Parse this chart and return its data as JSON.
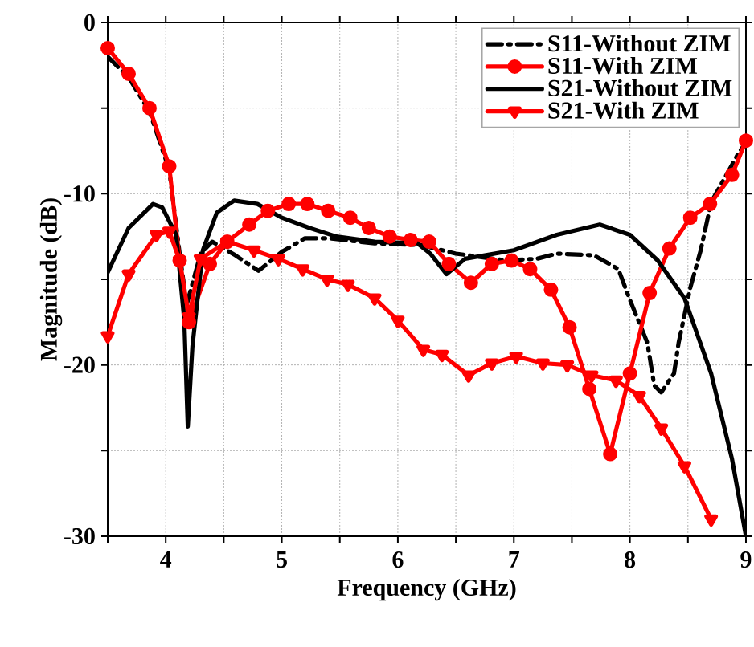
{
  "chart_data": {
    "type": "line",
    "xlabel": "Frequency (GHz)",
    "ylabel": "Magnitude (dB)",
    "xlim": [
      3.5,
      9
    ],
    "ylim": [
      -30,
      0
    ],
    "xticks": [
      {
        "value": 3.5,
        "label": null
      },
      4,
      {
        "value": 4.5,
        "label": null
      },
      5,
      {
        "value": 5.5,
        "label": null
      },
      6,
      {
        "value": 6.5,
        "label": null
      },
      7,
      {
        "value": 7.5,
        "label": null
      },
      8,
      {
        "value": 8.5,
        "label": null
      },
      9
    ],
    "yticks": [
      -30,
      {
        "value": -25,
        "label": null
      },
      -20,
      {
        "value": -15,
        "label": null
      },
      -10,
      {
        "value": -5,
        "label": null
      },
      0
    ],
    "grid": true,
    "legend": "top right",
    "series": [
      {
        "name": "S11-Without ZIM",
        "color": "#000000",
        "line_style": "dashdot",
        "marker": "none",
        "x": [
          3.5,
          3.68,
          3.86,
          4.03,
          4.12,
          4.18,
          4.3,
          4.4,
          4.6,
          4.8,
          5.0,
          5.2,
          5.4,
          5.8,
          6.2,
          6.5,
          6.93,
          7.2,
          7.37,
          7.69,
          7.9,
          8.0,
          8.15,
          8.21,
          8.27,
          8.38,
          8.42,
          8.52,
          8.61,
          8.7,
          8.93,
          9.0
        ],
        "values": [
          -2.0,
          -3.2,
          -5.2,
          -8.6,
          -13.5,
          -16.5,
          -13.5,
          -12.8,
          -13.6,
          -14.5,
          -13.4,
          -12.6,
          -12.6,
          -12.9,
          -13.0,
          -13.5,
          -13.9,
          -13.8,
          -13.5,
          -13.6,
          -14.4,
          -16.2,
          -18.7,
          -21.2,
          -21.6,
          -20.5,
          -18.7,
          -15.5,
          -13.3,
          -10.5,
          -7.7,
          -7.0
        ]
      },
      {
        "name": "S11-With ZIM",
        "color": "#ff0000",
        "line_style": "solid",
        "marker": "circle",
        "x": [
          3.5,
          3.68,
          3.86,
          4.03,
          4.12,
          4.2,
          4.38,
          4.53,
          4.72,
          4.88,
          5.06,
          5.22,
          5.4,
          5.59,
          5.75,
          5.93,
          6.11,
          6.27,
          6.44,
          6.63,
          6.81,
          6.98,
          7.14,
          7.32,
          7.48,
          7.65,
          7.83,
          8.0,
          8.17,
          8.34,
          8.52,
          8.69,
          8.88,
          9.0
        ],
        "values": [
          -1.5,
          -3.0,
          -5.0,
          -8.4,
          -13.9,
          -17.5,
          -14.1,
          -12.8,
          -11.8,
          -11.0,
          -10.6,
          -10.6,
          -11.0,
          -11.4,
          -12.0,
          -12.5,
          -12.7,
          -12.8,
          -14.1,
          -15.2,
          -14.1,
          -13.9,
          -14.4,
          -15.6,
          -17.8,
          -21.4,
          -25.2,
          -20.5,
          -15.8,
          -13.2,
          -11.4,
          -10.6,
          -8.9,
          -6.9
        ]
      },
      {
        "name": "S21-Without ZIM",
        "color": "#000000",
        "line_style": "solid",
        "marker": "none",
        "x": [
          3.5,
          3.68,
          3.89,
          3.97,
          4.09,
          4.16,
          4.19,
          4.23,
          4.32,
          4.44,
          4.59,
          4.79,
          5.0,
          5.24,
          5.47,
          5.8,
          6.17,
          6.28,
          6.35,
          6.42,
          6.58,
          7.0,
          7.37,
          7.74,
          8.0,
          8.24,
          8.47,
          8.7,
          8.88,
          9.0
        ],
        "values": [
          -14.6,
          -12.0,
          -10.6,
          -10.8,
          -12.4,
          -17.4,
          -23.6,
          -18.9,
          -13.3,
          -11.1,
          -10.4,
          -10.6,
          -11.4,
          -12.0,
          -12.5,
          -12.8,
          -12.9,
          -13.5,
          -14.1,
          -14.7,
          -13.8,
          -13.3,
          -12.4,
          -11.8,
          -12.4,
          -13.9,
          -16.1,
          -20.5,
          -25.5,
          -30.0
        ]
      },
      {
        "name": "S21-With ZIM",
        "color": "#ff0000",
        "line_style": "solid",
        "marker": "triangle",
        "x": [
          3.5,
          3.68,
          3.92,
          4.03,
          4.12,
          4.2,
          4.3,
          4.53,
          4.76,
          4.97,
          5.18,
          5.39,
          5.57,
          5.8,
          6.0,
          6.22,
          6.38,
          6.61,
          6.81,
          7.02,
          7.25,
          7.46,
          7.67,
          7.88,
          8.08,
          8.27,
          8.47,
          8.7
        ],
        "values": [
          -18.3,
          -14.7,
          -12.4,
          -12.2,
          -13.9,
          -17.2,
          -13.8,
          -12.8,
          -13.3,
          -13.8,
          -14.4,
          -15.0,
          -15.3,
          -16.1,
          -17.4,
          -19.1,
          -19.4,
          -20.6,
          -19.9,
          -19.5,
          -19.9,
          -20.0,
          -20.6,
          -20.9,
          -21.8,
          -23.7,
          -25.9,
          -29.0
        ]
      }
    ]
  }
}
